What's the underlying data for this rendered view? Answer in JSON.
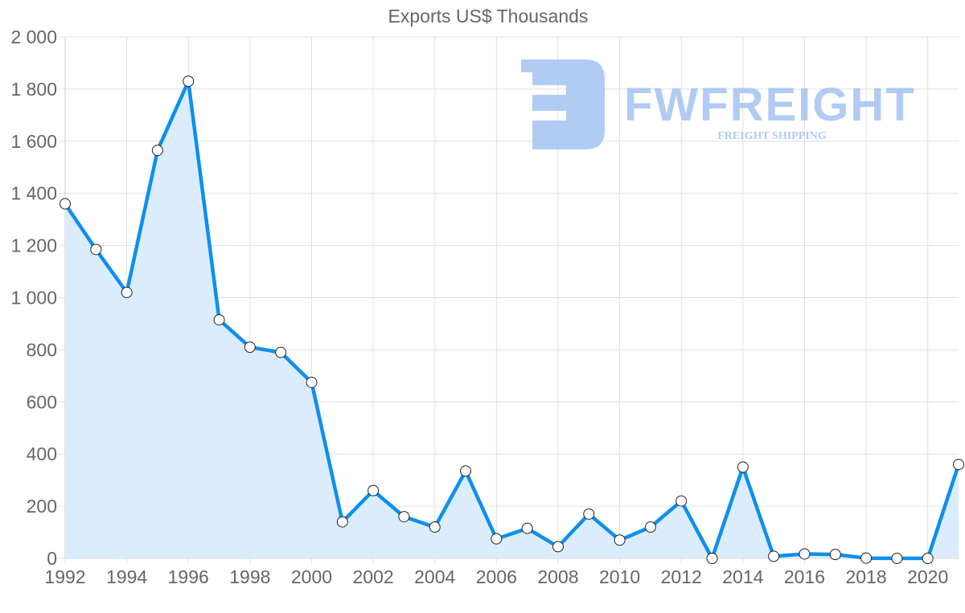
{
  "chart_data": {
    "type": "line",
    "title": "Exports US$ Thousands",
    "xlabel": "",
    "ylabel": "",
    "x": [
      1992,
      1993,
      1994,
      1995,
      1996,
      1997,
      1998,
      1999,
      2000,
      2001,
      2002,
      2003,
      2004,
      2005,
      2006,
      2007,
      2008,
      2009,
      2010,
      2011,
      2012,
      2013,
      2014,
      2015,
      2016,
      2017,
      2018,
      2019,
      2020,
      2021
    ],
    "series": [
      {
        "name": "Exports US$ Thousands",
        "values": [
          1360,
          1185,
          1020,
          1565,
          1830,
          915,
          810,
          790,
          675,
          140,
          260,
          160,
          120,
          335,
          75,
          115,
          45,
          170,
          70,
          120,
          220,
          0,
          350,
          8,
          17,
          15,
          1,
          0,
          0,
          360
        ],
        "fill": true
      }
    ],
    "ylim": [
      0,
      2000
    ],
    "xlim": [
      1992,
      2021
    ],
    "y_ticks": [
      0,
      200,
      400,
      600,
      800,
      1000,
      1200,
      1400,
      1600,
      1800,
      2000
    ],
    "y_tick_labels": [
      "0",
      "200",
      "400",
      "600",
      "800",
      "1 000",
      "1 200",
      "1 400",
      "1 600",
      "1 800",
      "2 000"
    ],
    "x_ticks": [
      1992,
      1994,
      1996,
      1998,
      2000,
      2002,
      2004,
      2006,
      2008,
      2010,
      2012,
      2014,
      2016,
      2018,
      2020
    ],
    "x_tick_labels": [
      "1992",
      "1994",
      "1996",
      "1998",
      "2000",
      "2002",
      "2004",
      "2006",
      "2008",
      "2010",
      "2012",
      "2014",
      "2016",
      "2018",
      "2020"
    ],
    "grid": true,
    "legend": false,
    "colors": {
      "line": "#0e8ff0",
      "fill": "#d9ecfc",
      "point_fill": "#ffffff",
      "point_stroke": "#222222",
      "grid": "#e0e0e0",
      "tick_label": "#666666"
    }
  },
  "watermark": {
    "brand": "FWFREIGHT",
    "tagline": "FREIGHT SHIPPING",
    "color": "#a9c6f2"
  }
}
